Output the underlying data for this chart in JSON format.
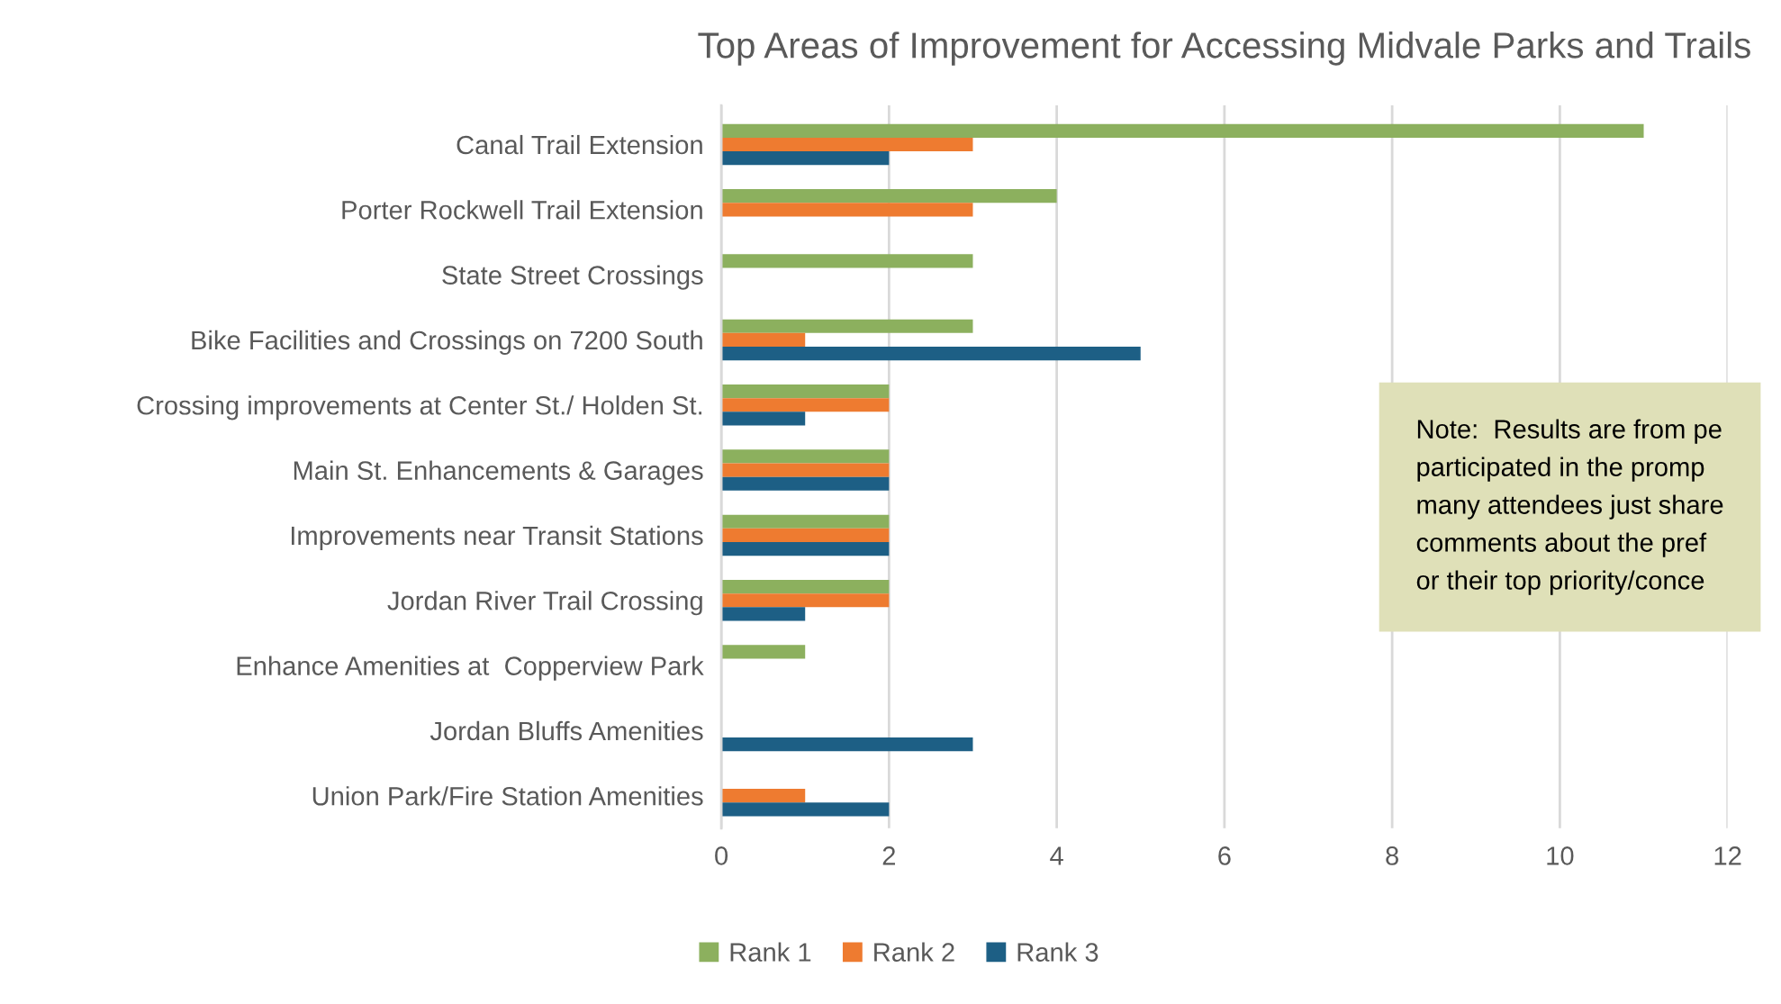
{
  "chart_data": {
    "type": "bar",
    "orientation": "horizontal",
    "title": "Top Areas of Improvement for Accessing Midvale Parks and Trails",
    "categories": [
      "Canal Trail Extension",
      "Porter Rockwell Trail Extension",
      "State Street Crossings",
      "Bike Facilities and Crossings on 7200 South",
      "Crossing improvements at Center St./ Holden St.",
      "Main St. Enhancements & Garages",
      "Improvements near Transit Stations",
      "Jordan River Trail Crossing",
      "Enhance Amenities at  Copperview Park",
      "Jordan Bluffs Amenities",
      "Union Park/Fire Station Amenities"
    ],
    "series": [
      {
        "name": "Rank 1",
        "color": "#8cb05e",
        "values": [
          11,
          4,
          3,
          3,
          2,
          2,
          2,
          2,
          1,
          null,
          null
        ]
      },
      {
        "name": "Rank 2",
        "color": "#ee7b30",
        "values": [
          3,
          3,
          null,
          1,
          2,
          2,
          2,
          2,
          null,
          null,
          1
        ]
      },
      {
        "name": "Rank 3",
        "color": "#1d5f85",
        "values": [
          2,
          null,
          null,
          5,
          1,
          2,
          2,
          1,
          null,
          3,
          2
        ]
      }
    ],
    "xlim": [
      0,
      12
    ],
    "xticks": [
      0,
      2,
      4,
      6,
      8,
      10,
      12
    ],
    "grid": "x",
    "legend": "bottom",
    "annotations": [
      "Note:  Results are from pe\nparticipated in the promp\nmany attendees just share\ncomments about the pref\nor their top priority/conce"
    ]
  }
}
